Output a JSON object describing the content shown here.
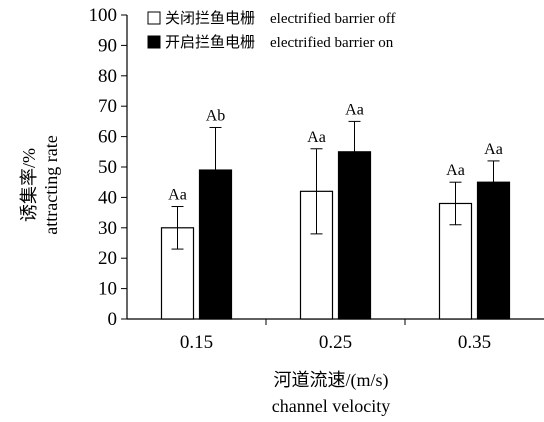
{
  "chart_data": {
    "type": "bar",
    "categories": [
      "0.15",
      "0.25",
      "0.35"
    ],
    "series": [
      {
        "name": "关闭拦鱼电栅　electrified barrier off",
        "fill": "#ffffff",
        "values": [
          30,
          42,
          38
        ],
        "errors": [
          7,
          14,
          7
        ],
        "labels": [
          "Aa",
          "Aa",
          "Aa"
        ]
      },
      {
        "name": "开启拦鱼电栅　electrified barrier on",
        "fill": "#000000",
        "values": [
          49,
          55,
          45
        ],
        "errors": [
          14,
          10,
          7
        ],
        "labels": [
          "Ab",
          "Aa",
          "Aa"
        ]
      }
    ],
    "ylim": [
      0,
      100
    ],
    "yticks": [
      0,
      10,
      20,
      30,
      40,
      50,
      60,
      70,
      80,
      90,
      100
    ],
    "ylabel_cn": "诱集率/%",
    "ylabel_en": "attracting rate",
    "xlabel_cn": "河道流速/(m/s)",
    "xlabel_en": "channel velocity",
    "legend_position": "top-left",
    "grid": false
  },
  "colors": {
    "axis": "#000000",
    "bar_off": "#ffffff",
    "bar_on": "#000000"
  }
}
